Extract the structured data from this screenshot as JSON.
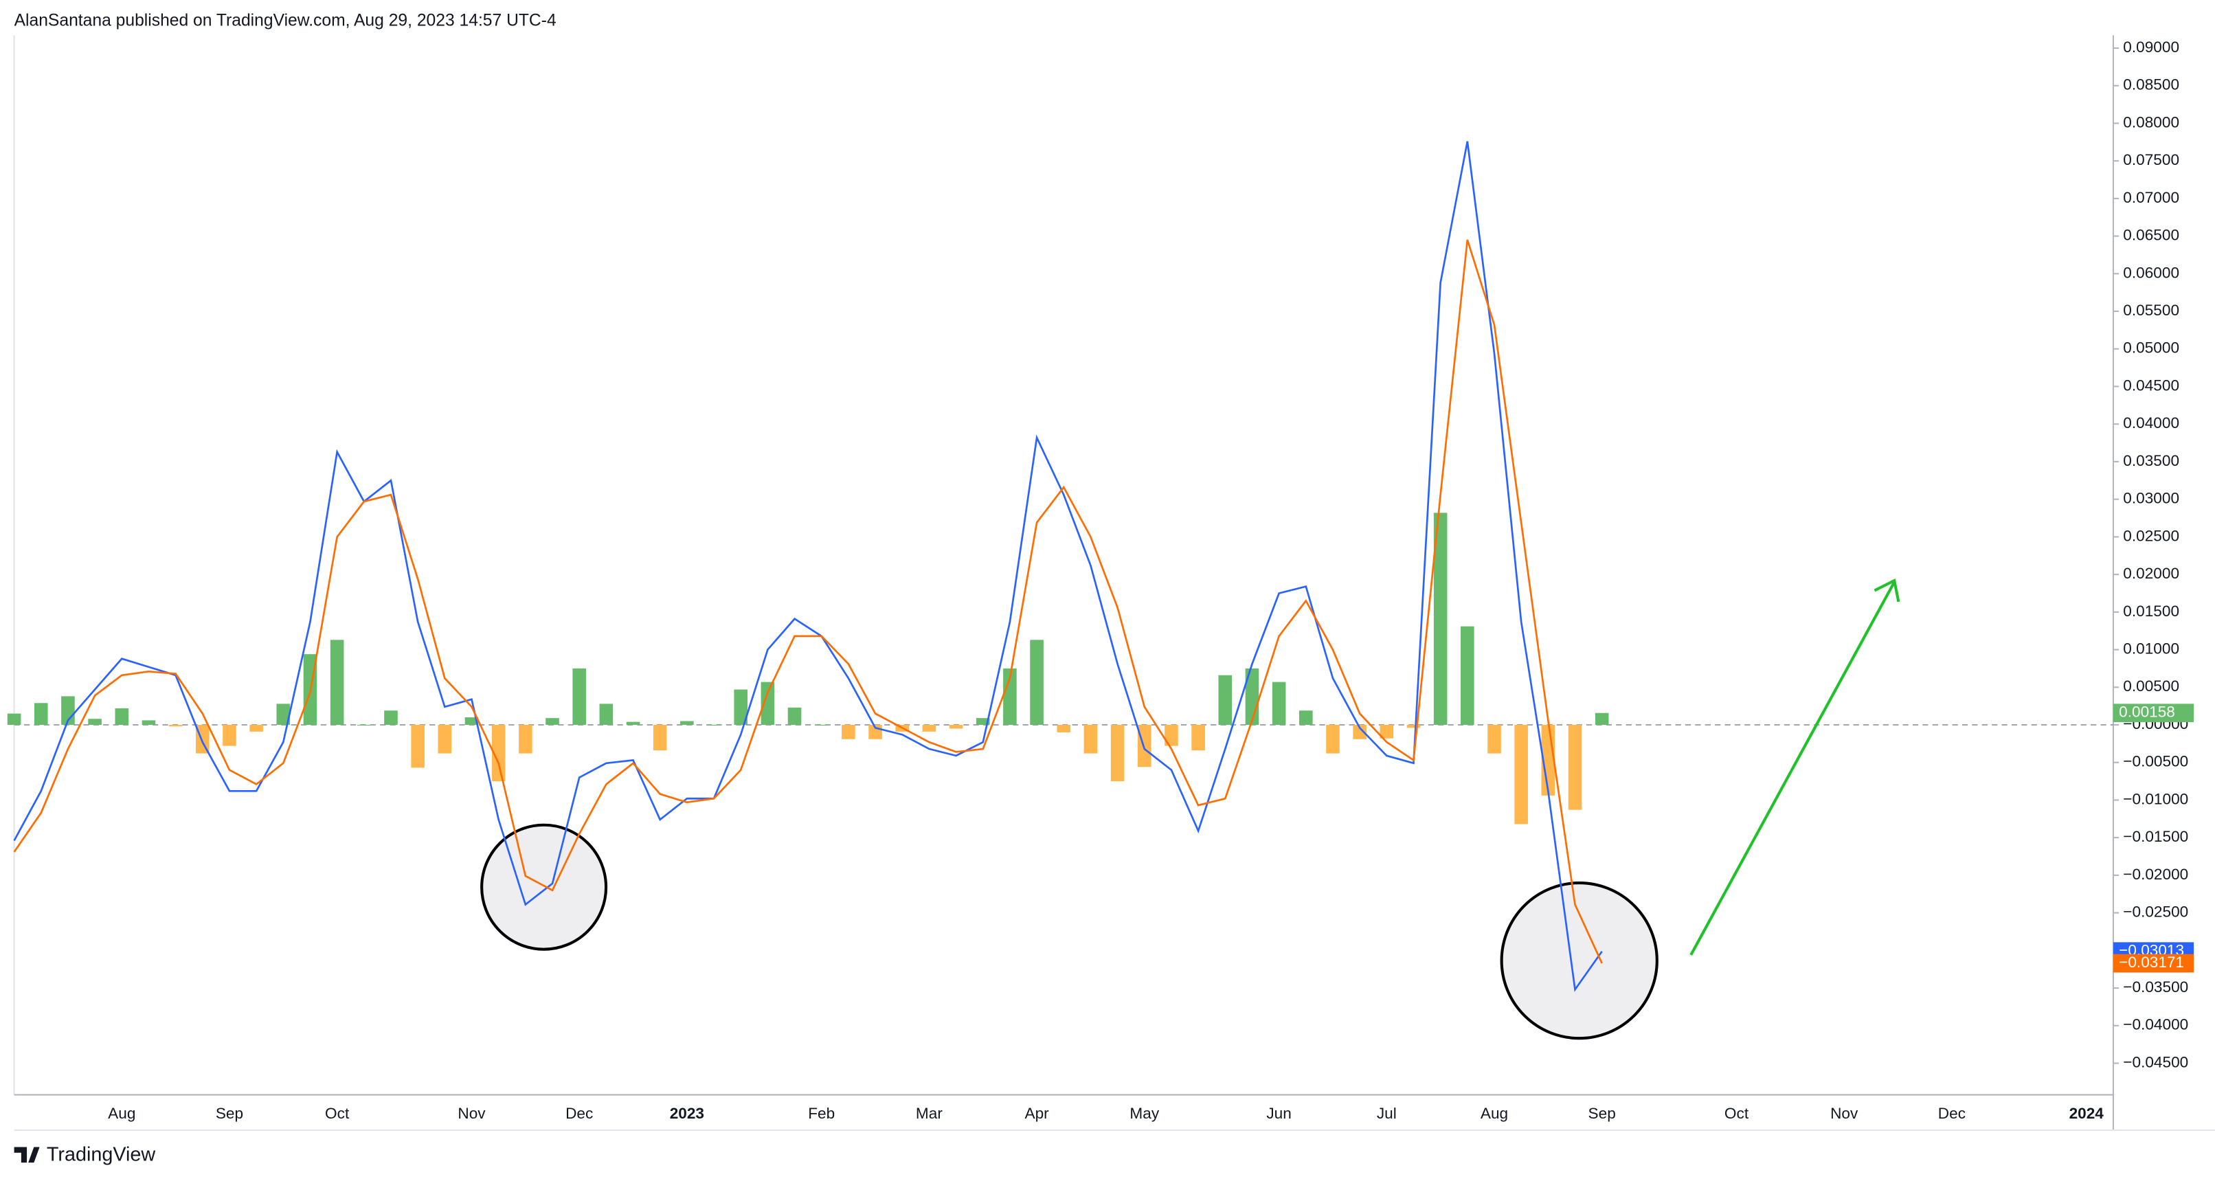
{
  "header": {
    "text": "AlanSantana published on TradingView.com, Aug 29, 2023 14:57 UTC-4"
  },
  "footer": {
    "brand": "TradingView"
  },
  "chart_data": {
    "type": "macd",
    "categories": [
      null,
      null,
      null,
      null,
      "Aug",
      null,
      null,
      null,
      "Sep",
      null,
      null,
      null,
      "Oct",
      null,
      null,
      null,
      null,
      "Nov",
      null,
      null,
      null,
      "Dec",
      null,
      null,
      null,
      "2023",
      null,
      null,
      null,
      null,
      "Feb",
      null,
      null,
      null,
      "Mar",
      null,
      null,
      null,
      "Apr",
      null,
      null,
      null,
      "May",
      null,
      null,
      null,
      null,
      "Jun",
      null,
      null,
      null,
      "Jul",
      null,
      null,
      null,
      "Aug",
      null,
      null,
      null,
      "Sep",
      null,
      null,
      null,
      null,
      "Oct",
      null,
      null,
      null,
      "Nov",
      null,
      null,
      null,
      "Dec",
      null,
      null,
      null,
      null,
      "2024",
      null
    ],
    "series": [
      {
        "type": "bar",
        "positive_color": "#66bb6a",
        "negative_color": "#ffb74d",
        "label": "0.00158",
        "values": [
          0.0015,
          0.0029,
          0.0038,
          0.0008,
          0.0022,
          0.0006,
          -0.0002,
          -0.0038,
          -0.0028,
          -0.0009,
          0.0028,
          0.0094,
          0.0113,
          0,
          0.0019,
          -0.0057,
          -0.0038,
          0.001,
          -0.0075,
          -0.0038,
          0.0009,
          0.0075,
          0.0028,
          0.0004,
          -0.0034,
          0.0005,
          0,
          0.0047,
          0.0057,
          0.0023,
          0,
          -0.0019,
          -0.0019,
          -0.0009,
          -0.0009,
          -0.0005,
          0.0009,
          0.0075,
          0.0113,
          -0.001,
          -0.0038,
          -0.0075,
          -0.0056,
          -0.0028,
          -0.0034,
          0.0066,
          0.0075,
          0.0057,
          0.0019,
          -0.0038,
          -0.0019,
          -0.0018,
          -0.0004,
          0.0282,
          0.0131,
          -0.0038,
          -0.0132,
          -0.0094,
          -0.0113,
          0.00158,
          null,
          null,
          null,
          null,
          null,
          null,
          null,
          null,
          null,
          null,
          null,
          null,
          null,
          null,
          null,
          null,
          null,
          null,
          null
        ]
      },
      {
        "type": "line",
        "color": "#2962ff",
        "label": "−0.03013",
        "values": [
          -0.0154,
          -0.0088,
          0.0006,
          0.0047,
          0.0088,
          0.0077,
          0.0066,
          -0.0023,
          -0.0088,
          -0.0088,
          -0.0023,
          0.0137,
          0.0363,
          0.0297,
          0.0325,
          0.0137,
          0.0024,
          0.0034,
          -0.0126,
          -0.0239,
          -0.0211,
          -0.007,
          -0.0051,
          -0.0047,
          -0.0126,
          -0.0098,
          -0.0098,
          -0.0013,
          0.01,
          0.0141,
          0.0118,
          0.0062,
          -0.0004,
          -0.0013,
          -0.0032,
          -0.0041,
          -0.0023,
          0.0137,
          0.0382,
          0.0306,
          0.0212,
          0.0081,
          -0.0032,
          -0.006,
          -0.0141,
          -0.0032,
          0.0081,
          0.0175,
          0.0184,
          0.0062,
          -0.0004,
          -0.0041,
          -0.0051,
          0.0588,
          0.0776,
          0.0494,
          0.0137,
          -0.0088,
          -0.0352,
          -0.03013,
          null,
          null,
          null,
          null,
          null,
          null,
          null,
          null,
          null,
          null,
          null,
          null,
          null,
          null,
          null,
          null,
          null,
          null,
          null
        ]
      },
      {
        "type": "line",
        "color": "#ff6d00",
        "label": "−0.03171",
        "values": [
          -0.0169,
          -0.0117,
          -0.0032,
          0.0039,
          0.0066,
          0.0071,
          0.0068,
          0.0015,
          -0.006,
          -0.0079,
          -0.0051,
          0.0043,
          0.025,
          0.0297,
          0.0306,
          0.0194,
          0.0062,
          0.0024,
          -0.0051,
          -0.0201,
          -0.022,
          -0.0145,
          -0.0079,
          -0.0051,
          -0.0092,
          -0.0103,
          -0.0098,
          -0.006,
          0.0043,
          0.0118,
          0.0118,
          0.0081,
          0.0015,
          -0.0004,
          -0.0023,
          -0.0036,
          -0.0032,
          0.0062,
          0.0269,
          0.0316,
          0.025,
          0.0156,
          0.0024,
          -0.0032,
          -0.0107,
          -0.0098,
          0.0006,
          0.0118,
          0.0165,
          0.01,
          0.0015,
          -0.0023,
          -0.0047,
          0.0306,
          0.0645,
          0.0532,
          0.0269,
          0.0006,
          -0.0239,
          -0.03171,
          null,
          null,
          null,
          null,
          null,
          null,
          null,
          null,
          null,
          null,
          null,
          null,
          null,
          null,
          null,
          null,
          null,
          null,
          null
        ]
      }
    ],
    "ylim": [
      -0.0492,
      0.0917
    ],
    "yticks": [
      {
        "value": 0.09,
        "label": "0.09000"
      },
      {
        "value": 0.085,
        "label": "0.08500"
      },
      {
        "value": 0.08,
        "label": "0.08000"
      },
      {
        "value": 0.075,
        "label": "0.07500"
      },
      {
        "value": 0.07,
        "label": "0.07000"
      },
      {
        "value": 0.065,
        "label": "0.06500"
      },
      {
        "value": 0.06,
        "label": "0.06000"
      },
      {
        "value": 0.055,
        "label": "0.05500"
      },
      {
        "value": 0.05,
        "label": "0.05000"
      },
      {
        "value": 0.045,
        "label": "0.04500"
      },
      {
        "value": 0.04,
        "label": "0.04000"
      },
      {
        "value": 0.035,
        "label": "0.03500"
      },
      {
        "value": 0.03,
        "label": "0.03000"
      },
      {
        "value": 0.025,
        "label": "0.02500"
      },
      {
        "value": 0.02,
        "label": "0.02000"
      },
      {
        "value": 0.015,
        "label": "0.01500"
      },
      {
        "value": 0.01,
        "label": "0.01000"
      },
      {
        "value": 0.005,
        "label": "0.00500"
      },
      {
        "value": 0,
        "label": "−0.00000"
      },
      {
        "value": -0.005,
        "label": "−0.00500"
      },
      {
        "value": -0.01,
        "label": "−0.01000"
      },
      {
        "value": -0.015,
        "label": "−0.01500"
      },
      {
        "value": -0.02,
        "label": "−0.02000"
      },
      {
        "value": -0.025,
        "label": "−0.02500"
      },
      {
        "value": -0.03,
        "label": "−0.03000"
      },
      {
        "value": -0.035,
        "label": "−0.03500"
      },
      {
        "value": -0.04,
        "label": "−0.04000"
      },
      {
        "value": -0.045,
        "label": "−0.04500"
      }
    ],
    "grid": false
  }
}
